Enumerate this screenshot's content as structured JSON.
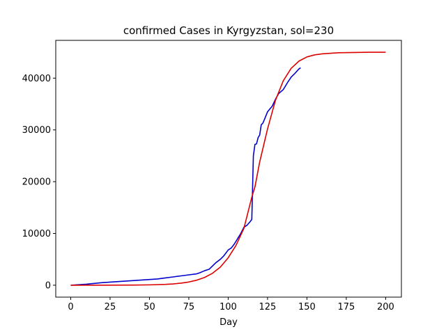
{
  "chart_data": {
    "type": "line",
    "title": "confirmed Cases in Kyrgyzstan, sol=230",
    "xlabel": "Day",
    "ylabel": "",
    "xlim": [
      -9.5,
      210
    ],
    "ylim": [
      -2300,
      47300
    ],
    "xticks": [
      0,
      25,
      50,
      75,
      100,
      125,
      150,
      175,
      200
    ],
    "yticks": [
      0,
      10000,
      20000,
      30000,
      40000
    ],
    "grid": false,
    "legend": "none",
    "series": [
      {
        "color": "#0000cc",
        "x": [
          0,
          5,
          10,
          15,
          20,
          25,
          30,
          35,
          40,
          45,
          50,
          55,
          60,
          65,
          70,
          75,
          80,
          82,
          85,
          88,
          90,
          92,
          95,
          97,
          100,
          102,
          104,
          106,
          108,
          110,
          112,
          114,
          115,
          116,
          117,
          118,
          119,
          120,
          121,
          122,
          123,
          125,
          128,
          130,
          132,
          135,
          138,
          140,
          142,
          145,
          146
        ],
        "y": [
          0,
          100,
          200,
          350,
          500,
          600,
          700,
          800,
          900,
          1000,
          1100,
          1200,
          1400,
          1600,
          1800,
          2000,
          2200,
          2400,
          2800,
          3100,
          3700,
          4300,
          5000,
          5600,
          6800,
          7200,
          8000,
          9000,
          10000,
          11200,
          11600,
          12300,
          12700,
          25000,
          27200,
          27300,
          28500,
          29000,
          31000,
          31300,
          32000,
          33500,
          34600,
          35900,
          37000,
          37800,
          39300,
          40200,
          40800,
          41800,
          42000
        ]
      },
      {
        "color": "#dd0000",
        "x": [
          0,
          20,
          40,
          50,
          60,
          65,
          70,
          75,
          80,
          85,
          90,
          95,
          100,
          105,
          110,
          115,
          117,
          120,
          125,
          130,
          135,
          140,
          145,
          150,
          155,
          160,
          170,
          180,
          190,
          200
        ],
        "y": [
          0,
          6,
          30,
          70,
          160,
          250,
          400,
          620,
          970,
          1500,
          2300,
          3500,
          5300,
          7700,
          11000,
          17000,
          19000,
          23800,
          30200,
          35700,
          39500,
          41900,
          43300,
          44100,
          44500,
          44700,
          44900,
          44950,
          45000,
          45000
        ]
      }
    ]
  }
}
